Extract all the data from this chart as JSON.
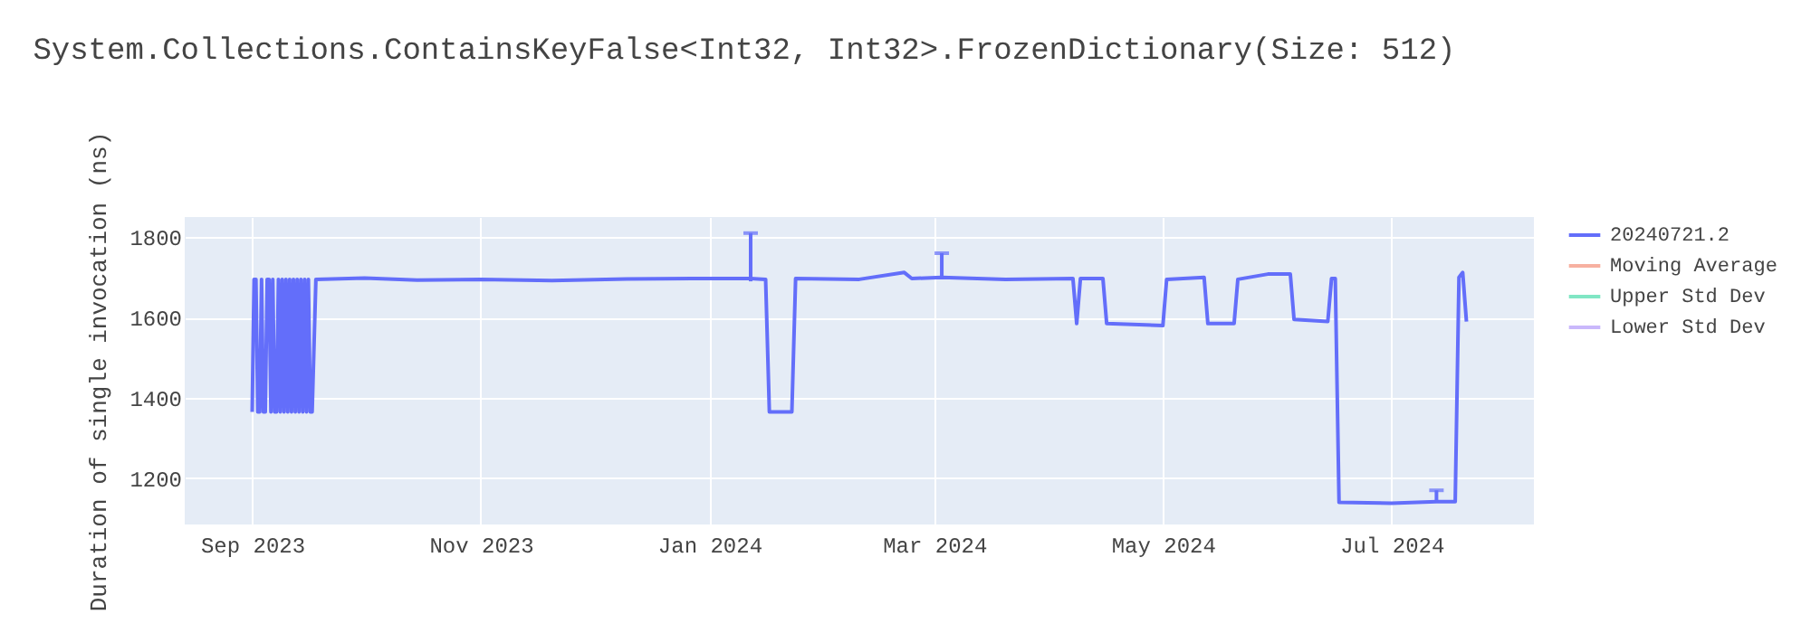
{
  "chart_data": {
    "type": "line",
    "title": "System.Collections.ContainsKeyFalse<Int32, Int32>.FrozenDictionary(Size: 512)",
    "ylabel": "Duration of single invocation (ns)",
    "xlim": [
      "2023-08-14",
      "2024-08-08"
    ],
    "ylim": [
      1085,
      1850
    ],
    "xticks": [
      {
        "value": "2023-09-01",
        "label": "Sep 2023"
      },
      {
        "value": "2023-11-01",
        "label": "Nov 2023"
      },
      {
        "value": "2024-01-01",
        "label": "Jan 2024"
      },
      {
        "value": "2024-03-01",
        "label": "Mar 2024"
      },
      {
        "value": "2024-05-01",
        "label": "May 2024"
      },
      {
        "value": "2024-07-01",
        "label": "Jul 2024"
      }
    ],
    "yticks": [
      1200,
      1400,
      1600,
      1800
    ],
    "grid": true,
    "legend": "top right",
    "marker": "none",
    "line_style": "solid",
    "series": [
      {
        "name": "20240721.2",
        "color": "#636efa",
        "x": [
          "2023-09-01",
          "2023-09-01T12:00",
          "2023-09-02",
          "2023-09-02T12:00",
          "2023-09-03",
          "2023-09-03T12:00",
          "2023-09-04",
          "2023-09-04T12:00",
          "2023-09-05",
          "2023-09-05T12:00",
          "2023-09-06",
          "2023-09-06T12:00",
          "2023-09-07",
          "2023-09-07T12:00",
          "2023-09-08",
          "2023-09-08T12:00",
          "2023-09-09",
          "2023-09-09T12:00",
          "2023-09-10",
          "2023-09-10T12:00",
          "2023-09-11",
          "2023-09-11T12:00",
          "2023-09-12",
          "2023-09-12T12:00",
          "2023-09-13",
          "2023-09-13T12:00",
          "2023-09-14",
          "2023-09-14T12:00",
          "2023-09-15",
          "2023-09-15T12:00",
          "2023-09-16",
          "2023-09-16T12:00",
          "2023-09-17",
          "2023-09-18",
          "2023-10-01",
          "2023-10-15",
          "2023-11-01",
          "2023-11-20",
          "2023-12-10",
          "2024-01-01",
          "2024-01-12",
          "2024-01-16",
          "2024-01-17",
          "2024-01-23",
          "2024-01-24",
          "2024-02-10",
          "2024-02-22",
          "2024-02-24",
          "2024-03-03",
          "2024-03-20",
          "2024-04-07",
          "2024-04-08",
          "2024-04-09",
          "2024-04-15",
          "2024-04-16",
          "2024-05-01",
          "2024-05-02",
          "2024-05-12",
          "2024-05-13",
          "2024-05-20",
          "2024-05-21",
          "2024-05-29",
          "2024-06-04",
          "2024-06-05",
          "2024-06-14",
          "2024-06-15",
          "2024-06-16",
          "2024-06-17",
          "2024-07-01",
          "2024-07-13",
          "2024-07-18",
          "2024-07-19",
          "2024-07-20",
          "2024-07-21"
        ],
        "values": [
          1365,
          1695,
          1695,
          1365,
          1365,
          1695,
          1365,
          1365,
          1695,
          1695,
          1365,
          1695,
          1365,
          1365,
          1695,
          1365,
          1695,
          1365,
          1695,
          1365,
          1695,
          1365,
          1695,
          1365,
          1695,
          1365,
          1695,
          1365,
          1695,
          1365,
          1695,
          1365,
          1365,
          1695,
          1698,
          1693,
          1695,
          1692,
          1696,
          1697,
          1697,
          1695,
          1365,
          1365,
          1697,
          1695,
          1712,
          1697,
          1700,
          1695,
          1697,
          1585,
          1697,
          1697,
          1585,
          1580,
          1695,
          1700,
          1585,
          1585,
          1695,
          1708,
          1708,
          1595,
          1590,
          1697,
          1697,
          1140,
          1138,
          1142,
          1142,
          1700,
          1712,
          1590
        ],
        "errors": [
          null,
          null,
          null,
          null,
          null,
          null,
          null,
          null,
          null,
          null,
          null,
          null,
          null,
          null,
          null,
          null,
          null,
          null,
          null,
          null,
          null,
          null,
          null,
          null,
          null,
          null,
          null,
          null,
          null,
          null,
          null,
          null,
          null,
          null,
          null,
          null,
          null,
          null,
          null,
          null,
          [
            1690,
            1810
          ],
          null,
          null,
          null,
          null,
          null,
          null,
          null,
          [
            1695,
            1760
          ],
          null,
          null,
          null,
          null,
          null,
          null,
          null,
          null,
          null,
          null,
          null,
          null,
          null,
          null,
          null,
          null,
          null,
          null,
          null,
          null,
          [
            1140,
            1170
          ],
          null,
          null,
          null,
          null
        ]
      },
      {
        "name": "Moving Average",
        "color": "#f7b0a0"
      },
      {
        "name": "Upper Std Dev",
        "color": "#80e6c4"
      },
      {
        "name": "Lower Std Dev",
        "color": "#c9b8fb"
      }
    ]
  }
}
